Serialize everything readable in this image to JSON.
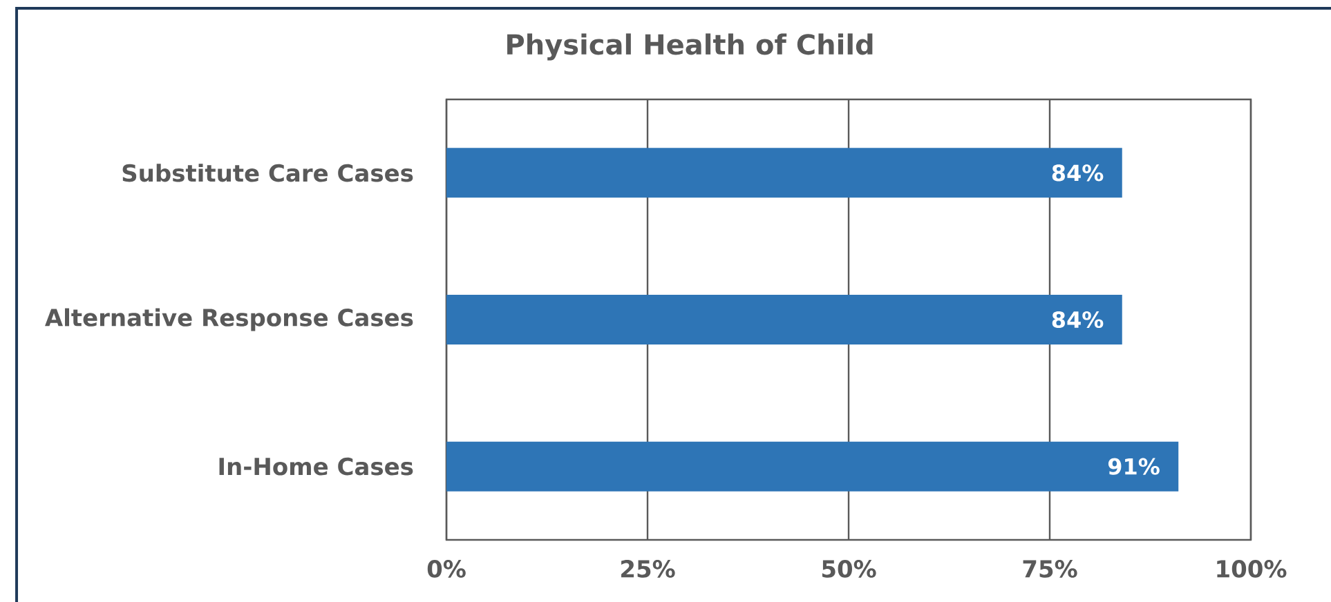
{
  "chart_data": {
    "type": "bar",
    "orientation": "horizontal",
    "title": "Physical Health of Child",
    "categories": [
      "Substitute Care Cases",
      "Alternative Response Cases",
      "In-Home Cases"
    ],
    "values": [
      84,
      84,
      91
    ],
    "color": "#2e75b6",
    "value_labels": [
      "84%",
      "84%",
      "91%"
    ],
    "xlim": [
      0,
      100
    ],
    "xticks": [
      {
        "value": 0,
        "label": "0%"
      },
      {
        "value": 25,
        "label": "25%"
      },
      {
        "value": 50,
        "label": "50%"
      },
      {
        "value": 75,
        "label": "75%"
      },
      {
        "value": 100,
        "label": "100%"
      }
    ],
    "grid": "x"
  }
}
